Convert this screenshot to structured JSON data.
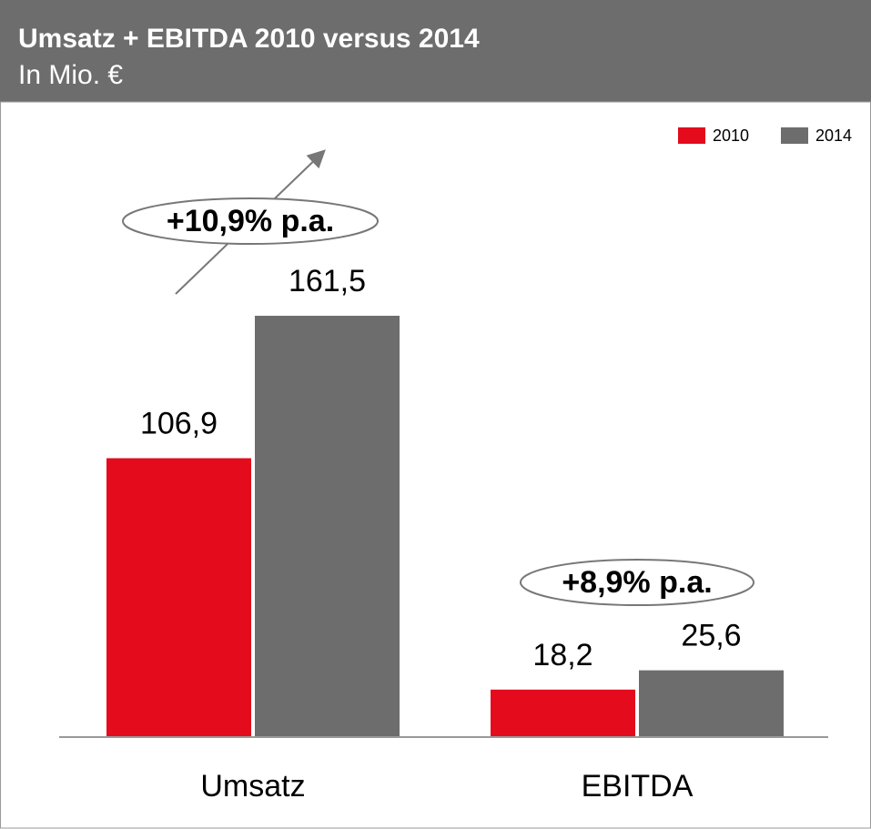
{
  "chart_data": {
    "type": "bar",
    "title": "Umsatz + EBITDA 2010 versus 2014",
    "subtitle": "In Mio. €",
    "categories": [
      "Umsatz",
      "EBITDA"
    ],
    "series": [
      {
        "name": "2010",
        "color": "#e30b1c",
        "values": [
          106.9,
          18.2
        ],
        "value_labels": [
          "106,9",
          "18,2"
        ]
      },
      {
        "name": "2014",
        "color": "#6d6d6d",
        "values": [
          161.5,
          25.6
        ],
        "value_labels": [
          "161,5",
          "25,6"
        ]
      }
    ],
    "annotations": [
      "+10,9% p.a.",
      "+8,9% p.a."
    ],
    "legend": "top-right"
  }
}
